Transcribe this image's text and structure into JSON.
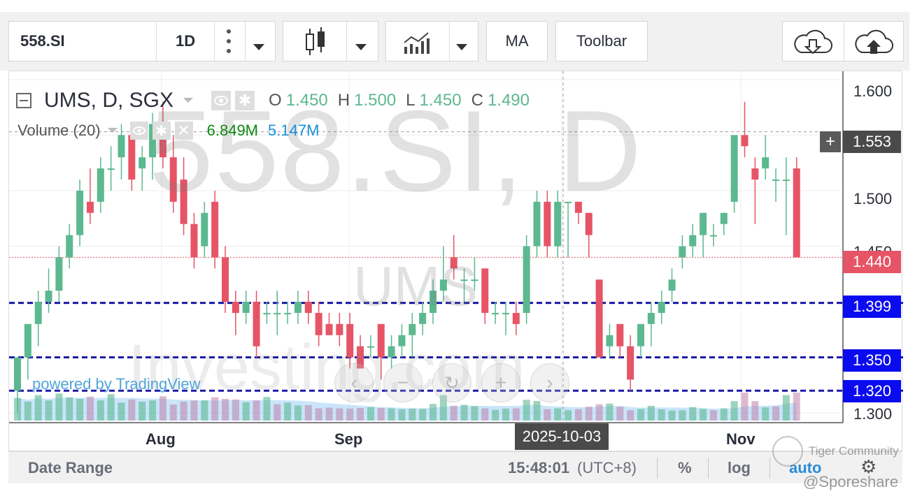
{
  "toolbar": {
    "symbol": "558.SI",
    "interval": "1D",
    "indicators_label": "MA",
    "toolbar_label": "Toolbar",
    "chart_type_icon": "candles-icon",
    "compare_icon": "bar-line-chart-icon",
    "download_icon": "cloud-download-icon",
    "upload_icon": "cloud-upload-icon"
  },
  "legend": {
    "title": "UMS, D, SGX",
    "o_label": "O",
    "o_value": "1.450",
    "h_label": "H",
    "h_value": "1.500",
    "l_label": "L",
    "l_value": "1.450",
    "c_label": "C",
    "c_value": "1.490",
    "volume_title": "Volume (20)",
    "volume_value": "6.849M",
    "volume_ma_value": "5.147M"
  },
  "watermarks": {
    "big": "558.SI, D",
    "mid": "UMS",
    "site": "Investing.com",
    "powered": "powered by TradingView"
  },
  "price_axis": {
    "ticks": [
      "1.600",
      "1.500",
      "1.450",
      "1.300"
    ],
    "crosshair_value": "1.553",
    "last_price": "1.440",
    "hline_1": "1.399",
    "hline_2": "1.350",
    "hline_3": "1.320"
  },
  "time_axis": {
    "ticks": [
      "Aug",
      "Sep",
      "Nov"
    ],
    "crosshair_date": "2025-10-03"
  },
  "bottom_bar": {
    "date_range": "Date Range",
    "time": "15:48:01",
    "timezone": "(UTC+8)",
    "percent": "%",
    "log": "log",
    "auto": "auto",
    "community": "Tiger Community",
    "credit": "@Sporeshare"
  },
  "colors": {
    "up": "#5cb88f",
    "down": "#e65466",
    "hline": "#1a1aa8",
    "axis_blue": "#0b0bf0",
    "last_price": "#e65466"
  },
  "chart_data": {
    "type": "candlestick",
    "title": "UMS, D, SGX",
    "y_range": [
      1.29,
      1.62
    ],
    "horizontal_lines": [
      1.399,
      1.35,
      1.32
    ],
    "last_price": 1.44,
    "crosshair": {
      "date": "2025-10-03",
      "price": 1.553
    },
    "x_ticks": [
      "Aug",
      "Sep",
      "Nov"
    ],
    "candles": [
      {
        "o": 1.32,
        "h": 1.35,
        "l": 1.3,
        "c": 1.35
      },
      {
        "o": 1.35,
        "h": 1.38,
        "l": 1.33,
        "c": 1.38
      },
      {
        "o": 1.38,
        "h": 1.41,
        "l": 1.36,
        "c": 1.4
      },
      {
        "o": 1.4,
        "h": 1.43,
        "l": 1.39,
        "c": 1.41
      },
      {
        "o": 1.41,
        "h": 1.45,
        "l": 1.4,
        "c": 1.44
      },
      {
        "o": 1.44,
        "h": 1.47,
        "l": 1.43,
        "c": 1.46
      },
      {
        "o": 1.46,
        "h": 1.51,
        "l": 1.45,
        "c": 1.5
      },
      {
        "o": 1.49,
        "h": 1.52,
        "l": 1.47,
        "c": 1.48
      },
      {
        "o": 1.49,
        "h": 1.53,
        "l": 1.48,
        "c": 1.52
      },
      {
        "o": 1.52,
        "h": 1.54,
        "l": 1.5,
        "c": 1.52
      },
      {
        "o": 1.53,
        "h": 1.56,
        "l": 1.51,
        "c": 1.55
      },
      {
        "o": 1.55,
        "h": 1.56,
        "l": 1.5,
        "c": 1.51
      },
      {
        "o": 1.52,
        "h": 1.54,
        "l": 1.5,
        "c": 1.53
      },
      {
        "o": 1.53,
        "h": 1.57,
        "l": 1.51,
        "c": 1.56
      },
      {
        "o": 1.56,
        "h": 1.58,
        "l": 1.52,
        "c": 1.53
      },
      {
        "o": 1.53,
        "h": 1.55,
        "l": 1.48,
        "c": 1.49
      },
      {
        "o": 1.51,
        "h": 1.53,
        "l": 1.46,
        "c": 1.47
      },
      {
        "o": 1.47,
        "h": 1.48,
        "l": 1.43,
        "c": 1.44
      },
      {
        "o": 1.45,
        "h": 1.49,
        "l": 1.44,
        "c": 1.48
      },
      {
        "o": 1.49,
        "h": 1.5,
        "l": 1.43,
        "c": 1.44
      },
      {
        "o": 1.44,
        "h": 1.45,
        "l": 1.39,
        "c": 1.4
      },
      {
        "o": 1.4,
        "h": 1.41,
        "l": 1.37,
        "c": 1.39
      },
      {
        "o": 1.39,
        "h": 1.41,
        "l": 1.38,
        "c": 1.4
      },
      {
        "o": 1.4,
        "h": 1.41,
        "l": 1.35,
        "c": 1.36
      },
      {
        "o": 1.39,
        "h": 1.4,
        "l": 1.38,
        "c": 1.39
      },
      {
        "o": 1.39,
        "h": 1.41,
        "l": 1.37,
        "c": 1.39
      },
      {
        "o": 1.39,
        "h": 1.4,
        "l": 1.38,
        "c": 1.39
      },
      {
        "o": 1.39,
        "h": 1.41,
        "l": 1.38,
        "c": 1.4
      },
      {
        "o": 1.4,
        "h": 1.41,
        "l": 1.38,
        "c": 1.39
      },
      {
        "o": 1.39,
        "h": 1.4,
        "l": 1.36,
        "c": 1.37
      },
      {
        "o": 1.38,
        "h": 1.39,
        "l": 1.37,
        "c": 1.37
      },
      {
        "o": 1.38,
        "h": 1.39,
        "l": 1.36,
        "c": 1.37
      },
      {
        "o": 1.38,
        "h": 1.39,
        "l": 1.34,
        "c": 1.35
      },
      {
        "o": 1.36,
        "h": 1.37,
        "l": 1.34,
        "c": 1.34
      },
      {
        "o": 1.36,
        "h": 1.37,
        "l": 1.35,
        "c": 1.36
      },
      {
        "o": 1.38,
        "h": 1.38,
        "l": 1.33,
        "c": 1.35
      },
      {
        "o": 1.35,
        "h": 1.37,
        "l": 1.34,
        "c": 1.36
      },
      {
        "o": 1.36,
        "h": 1.38,
        "l": 1.35,
        "c": 1.37
      },
      {
        "o": 1.37,
        "h": 1.39,
        "l": 1.35,
        "c": 1.38
      },
      {
        "o": 1.38,
        "h": 1.4,
        "l": 1.37,
        "c": 1.39
      },
      {
        "o": 1.39,
        "h": 1.42,
        "l": 1.38,
        "c": 1.41
      },
      {
        "o": 1.41,
        "h": 1.45,
        "l": 1.4,
        "c": 1.42
      },
      {
        "o": 1.44,
        "h": 1.46,
        "l": 1.42,
        "c": 1.43
      },
      {
        "o": 1.42,
        "h": 1.43,
        "l": 1.4,
        "c": 1.42
      },
      {
        "o": 1.42,
        "h": 1.44,
        "l": 1.41,
        "c": 1.42
      },
      {
        "o": 1.43,
        "h": 1.43,
        "l": 1.38,
        "c": 1.39
      },
      {
        "o": 1.39,
        "h": 1.4,
        "l": 1.38,
        "c": 1.39
      },
      {
        "o": 1.39,
        "h": 1.4,
        "l": 1.37,
        "c": 1.39
      },
      {
        "o": 1.39,
        "h": 1.4,
        "l": 1.37,
        "c": 1.38
      },
      {
        "o": 1.39,
        "h": 1.46,
        "l": 1.38,
        "c": 1.45
      },
      {
        "o": 1.45,
        "h": 1.5,
        "l": 1.44,
        "c": 1.49
      },
      {
        "o": 1.49,
        "h": 1.5,
        "l": 1.44,
        "c": 1.45
      },
      {
        "o": 1.45,
        "h": 1.5,
        "l": 1.44,
        "c": 1.49
      },
      {
        "o": 1.49,
        "h": 1.49,
        "l": 1.44,
        "c": 1.49
      },
      {
        "o": 1.49,
        "h": 1.49,
        "l": 1.47,
        "c": 1.48
      },
      {
        "o": 1.48,
        "h": 1.48,
        "l": 1.44,
        "c": 1.46
      },
      {
        "o": 1.42,
        "h": 1.42,
        "l": 1.35,
        "c": 1.35
      },
      {
        "o": 1.36,
        "h": 1.38,
        "l": 1.35,
        "c": 1.37
      },
      {
        "o": 1.38,
        "h": 1.38,
        "l": 1.35,
        "c": 1.36
      },
      {
        "o": 1.36,
        "h": 1.37,
        "l": 1.32,
        "c": 1.33
      },
      {
        "o": 1.36,
        "h": 1.38,
        "l": 1.35,
        "c": 1.38
      },
      {
        "o": 1.38,
        "h": 1.4,
        "l": 1.36,
        "c": 1.39
      },
      {
        "o": 1.39,
        "h": 1.41,
        "l": 1.38,
        "c": 1.4
      },
      {
        "o": 1.41,
        "h": 1.43,
        "l": 1.4,
        "c": 1.42
      },
      {
        "o": 1.44,
        "h": 1.46,
        "l": 1.43,
        "c": 1.45
      },
      {
        "o": 1.45,
        "h": 1.47,
        "l": 1.44,
        "c": 1.46
      },
      {
        "o": 1.46,
        "h": 1.48,
        "l": 1.44,
        "c": 1.48
      },
      {
        "o": 1.46,
        "h": 1.47,
        "l": 1.45,
        "c": 1.46
      },
      {
        "o": 1.47,
        "h": 1.48,
        "l": 1.46,
        "c": 1.48
      },
      {
        "o": 1.49,
        "h": 1.55,
        "l": 1.48,
        "c": 1.55
      },
      {
        "o": 1.55,
        "h": 1.58,
        "l": 1.53,
        "c": 1.54
      },
      {
        "o": 1.52,
        "h": 1.53,
        "l": 1.47,
        "c": 1.51
      },
      {
        "o": 1.52,
        "h": 1.55,
        "l": 1.51,
        "c": 1.53
      },
      {
        "o": 1.51,
        "h": 1.52,
        "l": 1.49,
        "c": 1.51
      },
      {
        "o": 1.51,
        "h": 1.53,
        "l": 1.46,
        "c": 1.51
      },
      {
        "o": 1.52,
        "h": 1.53,
        "l": 1.44,
        "c": 1.44
      }
    ],
    "volume": [
      0.72,
      0.6,
      0.81,
      0.64,
      0.86,
      0.74,
      0.69,
      0.76,
      0.64,
      0.84,
      0.57,
      0.67,
      0.6,
      0.64,
      0.77,
      0.51,
      0.6,
      0.64,
      0.64,
      0.74,
      0.69,
      0.67,
      0.58,
      0.64,
      0.75,
      0.52,
      0.57,
      0.48,
      0.49,
      0.39,
      0.41,
      0.39,
      0.38,
      0.4,
      0.43,
      0.4,
      0.39,
      0.36,
      0.38,
      0.37,
      0.53,
      0.81,
      0.47,
      0.5,
      0.46,
      0.39,
      0.34,
      0.38,
      0.39,
      0.66,
      0.62,
      0.36,
      0.39,
      0.33,
      0.36,
      0.44,
      0.52,
      0.54,
      0.44,
      0.33,
      0.37,
      0.47,
      0.36,
      0.32,
      0.33,
      0.43,
      0.37,
      0.33,
      0.39,
      0.62,
      0.89,
      0.62,
      0.42,
      0.45,
      0.81,
      0.89
    ],
    "volume_up": [
      true,
      true,
      true,
      true,
      true,
      true,
      true,
      false,
      true,
      true,
      true,
      false,
      true,
      true,
      false,
      false,
      false,
      false,
      true,
      false,
      false,
      false,
      true,
      false,
      true,
      false,
      true,
      true,
      false,
      false,
      false,
      false,
      false,
      false,
      true,
      false,
      true,
      true,
      true,
      true,
      true,
      true,
      false,
      true,
      true,
      false,
      true,
      true,
      false,
      true,
      true,
      false,
      true,
      true,
      false,
      false,
      false,
      true,
      false,
      false,
      true,
      true,
      true,
      true,
      true,
      true,
      true,
      false,
      true,
      true,
      false,
      false,
      true,
      false,
      true,
      false
    ]
  }
}
